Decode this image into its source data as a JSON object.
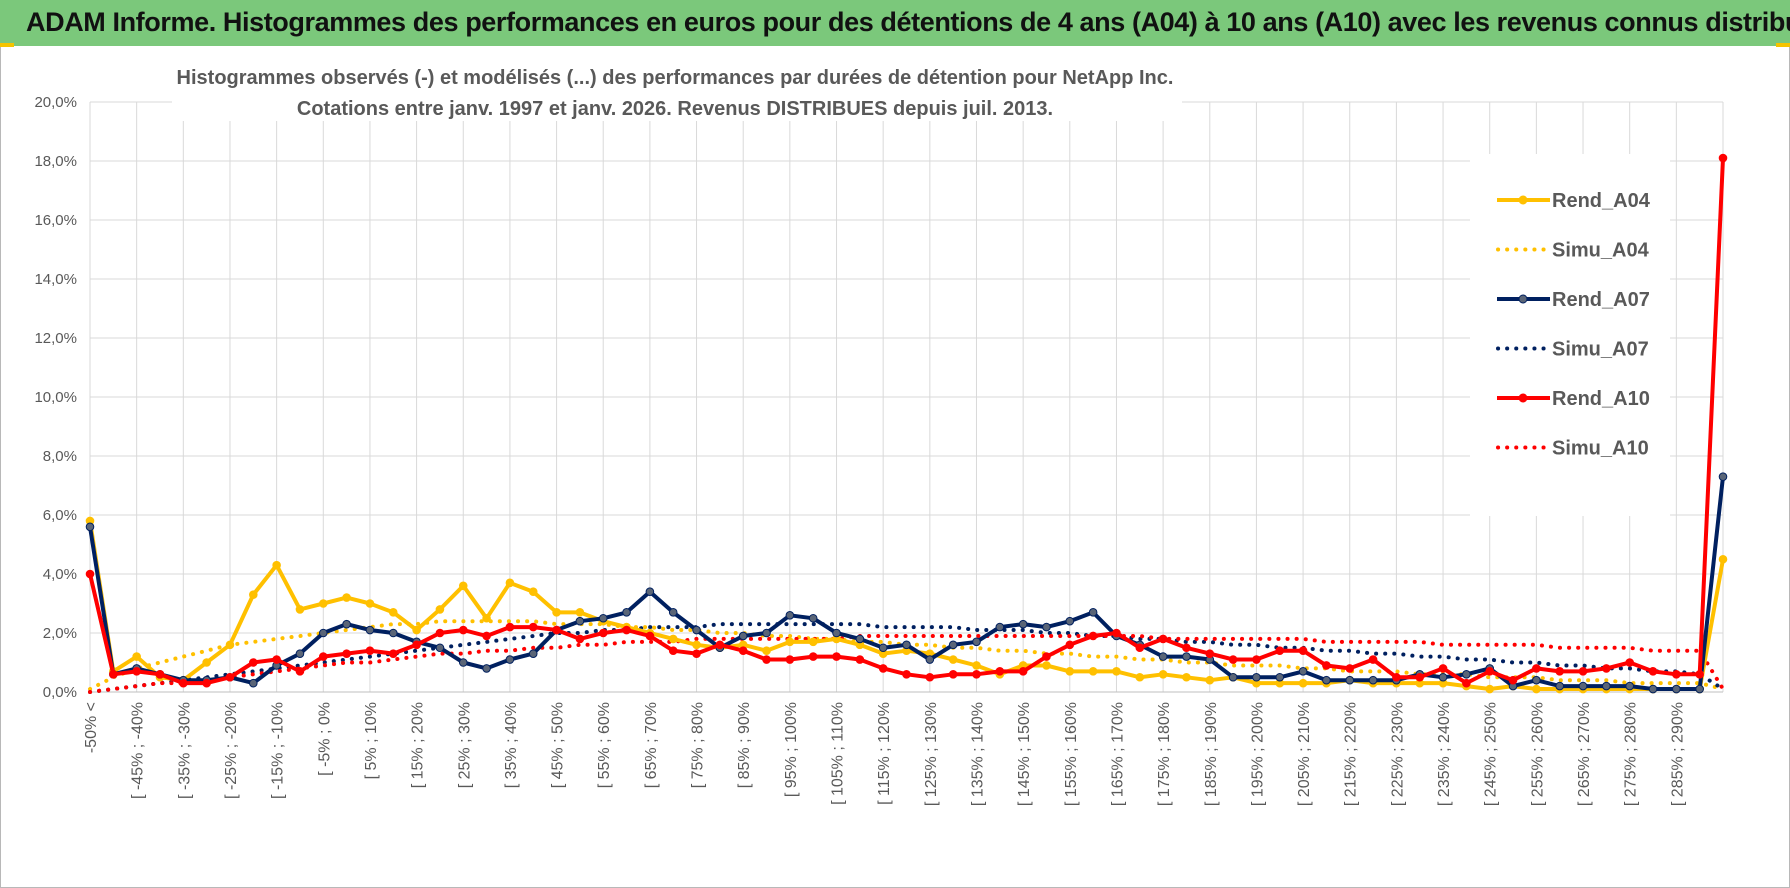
{
  "header": {
    "title": "ADAM Informe. Histogrammes des performances en euros pour des détentions de 4 ans (A04) à 10 ans (A10) avec les revenus connus distribués"
  },
  "colors": {
    "banner": "#7bc87b",
    "A04": "#ffc000",
    "A07": "#002060",
    "A10": "#ff0000",
    "grid": "#d9d9d9"
  },
  "chart_data": {
    "type": "line",
    "title_lines": [
      "Histogrammes observés (-) et modélisés (...) des performances par durées de détention pour NetApp Inc.",
      "Cotations entre janv. 1997 et janv. 2026. Revenus DISTRIBUES depuis juil. 2013."
    ],
    "ylim": [
      0,
      20
    ],
    "y_tick_labels": [
      "0,0%",
      "2,0%",
      "4,0%",
      "6,0%",
      "8,0%",
      "10,0%",
      "12,0%",
      "14,0%",
      "16,0%",
      "18,0%",
      "20,0%"
    ],
    "x_tick_labels": [
      "-50% <",
      "[ -45% ; -40%",
      "[ -35% ; -30%",
      "[ -25% ; -20%",
      "[ -15% ; -10%",
      "[ -5% ; 0%",
      "[ 5% ; 10%",
      "[ 15% ; 20%",
      "[ 25% ; 30%",
      "[ 35% ; 40%",
      "[ 45% ; 50%",
      "[ 55% ; 60%",
      "[ 65% ; 70%",
      "[ 75% ; 80%",
      "[ 85% ; 90%",
      "[ 95% ; 100%",
      "[ 105% ; 110%",
      "[ 115% ; 120%",
      "[ 125% ; 130%",
      "[ 135% ; 140%",
      "[ 145% ; 150%",
      "[ 155% ; 160%",
      "[ 165% ; 170%",
      "[ 175% ; 180%",
      "[ 185% ; 190%",
      "[ 195% ; 200%",
      "[ 205% ; 210%",
      "[ 215% ; 220%",
      "[ 225% ; 230%",
      "[ 235% ; 240%",
      "[ 245% ; 250%",
      "[ 255% ; 260%",
      "[ 265% ; 270%",
      "[ 275% ; 280%",
      "[ 285% ; 290%"
    ],
    "n_categories": 71,
    "legend": [
      "Rend_A04",
      "Simu_A04",
      "Rend_A07",
      "Simu_A07",
      "Rend_A10",
      "Simu_A10"
    ],
    "series": [
      {
        "name": "Rend_A04",
        "style": "solid",
        "color": "#ffc000",
        "values": [
          5.8,
          0.7,
          1.2,
          0.5,
          0.4,
          1.0,
          1.6,
          3.3,
          4.3,
          2.8,
          3.0,
          3.2,
          3.0,
          2.7,
          2.1,
          2.8,
          3.6,
          2.5,
          3.7,
          3.4,
          2.7,
          2.7,
          2.4,
          2.2,
          2.0,
          1.8,
          1.6,
          1.5,
          1.6,
          1.4,
          1.7,
          1.7,
          1.8,
          1.6,
          1.3,
          1.4,
          1.3,
          1.1,
          0.9,
          0.6,
          0.9,
          0.9,
          0.7,
          0.7,
          0.7,
          0.5,
          0.6,
          0.5,
          0.4,
          0.5,
          0.3,
          0.3,
          0.3,
          0.3,
          0.4,
          0.3,
          0.3,
          0.3,
          0.3,
          0.2,
          0.1,
          0.2,
          0.1,
          0.1,
          0.1,
          0.1,
          0.1,
          0.1,
          0.1,
          0.1,
          4.5
        ]
      },
      {
        "name": "Simu_A04",
        "style": "dotted",
        "color": "#ffc000",
        "values": [
          0.1,
          0.5,
          0.8,
          1.0,
          1.2,
          1.4,
          1.6,
          1.7,
          1.8,
          1.9,
          2.0,
          2.1,
          2.2,
          2.3,
          2.3,
          2.4,
          2.4,
          2.4,
          2.4,
          2.4,
          2.3,
          2.3,
          2.3,
          2.2,
          2.2,
          2.1,
          2.1,
          2.0,
          2.0,
          1.9,
          1.9,
          1.8,
          1.8,
          1.7,
          1.7,
          1.6,
          1.6,
          1.5,
          1.5,
          1.4,
          1.4,
          1.3,
          1.3,
          1.2,
          1.2,
          1.1,
          1.1,
          1.0,
          1.0,
          0.9,
          0.9,
          0.9,
          0.8,
          0.8,
          0.7,
          0.7,
          0.7,
          0.6,
          0.6,
          0.6,
          0.5,
          0.5,
          0.5,
          0.4,
          0.4,
          0.4,
          0.3,
          0.3,
          0.3,
          0.3,
          0.1
        ]
      },
      {
        "name": "Rend_A07",
        "style": "solid",
        "color": "#002060",
        "values": [
          5.6,
          0.6,
          0.8,
          0.6,
          0.4,
          0.4,
          0.5,
          0.3,
          0.9,
          1.3,
          2.0,
          2.3,
          2.1,
          2.0,
          1.7,
          1.5,
          1.0,
          0.8,
          1.1,
          1.3,
          2.1,
          2.4,
          2.5,
          2.7,
          3.4,
          2.7,
          2.1,
          1.5,
          1.9,
          2.0,
          2.6,
          2.5,
          2.0,
          1.8,
          1.5,
          1.6,
          1.1,
          1.6,
          1.7,
          2.2,
          2.3,
          2.2,
          2.4,
          2.7,
          1.9,
          1.6,
          1.2,
          1.2,
          1.1,
          0.5,
          0.5,
          0.5,
          0.7,
          0.4,
          0.4,
          0.4,
          0.4,
          0.6,
          0.5,
          0.6,
          0.8,
          0.2,
          0.4,
          0.2,
          0.2,
          0.2,
          0.2,
          0.1,
          0.1,
          0.1,
          7.3
        ]
      },
      {
        "name": "Simu_A07",
        "style": "dotted",
        "color": "#002060",
        "values": [
          0.0,
          0.1,
          0.2,
          0.3,
          0.4,
          0.5,
          0.6,
          0.7,
          0.8,
          0.9,
          1.0,
          1.1,
          1.2,
          1.3,
          1.4,
          1.5,
          1.6,
          1.7,
          1.8,
          1.9,
          2.0,
          2.0,
          2.1,
          2.1,
          2.2,
          2.2,
          2.2,
          2.3,
          2.3,
          2.3,
          2.3,
          2.3,
          2.3,
          2.3,
          2.2,
          2.2,
          2.2,
          2.2,
          2.1,
          2.1,
          2.1,
          2.0,
          2.0,
          1.9,
          1.9,
          1.8,
          1.8,
          1.7,
          1.7,
          1.6,
          1.6,
          1.5,
          1.5,
          1.4,
          1.4,
          1.3,
          1.3,
          1.2,
          1.2,
          1.1,
          1.1,
          1.0,
          1.0,
          0.9,
          0.9,
          0.8,
          0.8,
          0.7,
          0.7,
          0.6,
          0.1
        ]
      },
      {
        "name": "Rend_A10",
        "style": "solid",
        "color": "#ff0000",
        "values": [
          4.0,
          0.6,
          0.7,
          0.6,
          0.3,
          0.3,
          0.5,
          1.0,
          1.1,
          0.7,
          1.2,
          1.3,
          1.4,
          1.3,
          1.6,
          2.0,
          2.1,
          1.9,
          2.2,
          2.2,
          2.1,
          1.8,
          2.0,
          2.1,
          1.9,
          1.4,
          1.3,
          1.6,
          1.4,
          1.1,
          1.1,
          1.2,
          1.2,
          1.1,
          0.8,
          0.6,
          0.5,
          0.6,
          0.6,
          0.7,
          0.7,
          1.2,
          1.6,
          1.9,
          2.0,
          1.5,
          1.8,
          1.5,
          1.3,
          1.1,
          1.1,
          1.4,
          1.4,
          0.9,
          0.8,
          1.1,
          0.5,
          0.5,
          0.8,
          0.3,
          0.7,
          0.4,
          0.8,
          0.7,
          0.7,
          0.8,
          1.0,
          0.7,
          0.6,
          0.6,
          18.1
        ]
      },
      {
        "name": "Simu_A10",
        "style": "dotted",
        "color": "#ff0000",
        "values": [
          0.0,
          0.1,
          0.2,
          0.3,
          0.3,
          0.4,
          0.5,
          0.6,
          0.7,
          0.8,
          0.9,
          1.0,
          1.0,
          1.1,
          1.2,
          1.3,
          1.3,
          1.4,
          1.4,
          1.5,
          1.5,
          1.6,
          1.6,
          1.7,
          1.7,
          1.7,
          1.8,
          1.8,
          1.8,
          1.8,
          1.8,
          1.8,
          1.8,
          1.9,
          1.9,
          1.9,
          1.9,
          1.9,
          1.9,
          1.9,
          1.9,
          1.9,
          1.9,
          1.9,
          1.9,
          1.9,
          1.8,
          1.8,
          1.8,
          1.8,
          1.8,
          1.8,
          1.8,
          1.7,
          1.7,
          1.7,
          1.7,
          1.7,
          1.6,
          1.6,
          1.6,
          1.6,
          1.6,
          1.5,
          1.5,
          1.5,
          1.5,
          1.4,
          1.4,
          1.4,
          0.1
        ]
      }
    ]
  }
}
